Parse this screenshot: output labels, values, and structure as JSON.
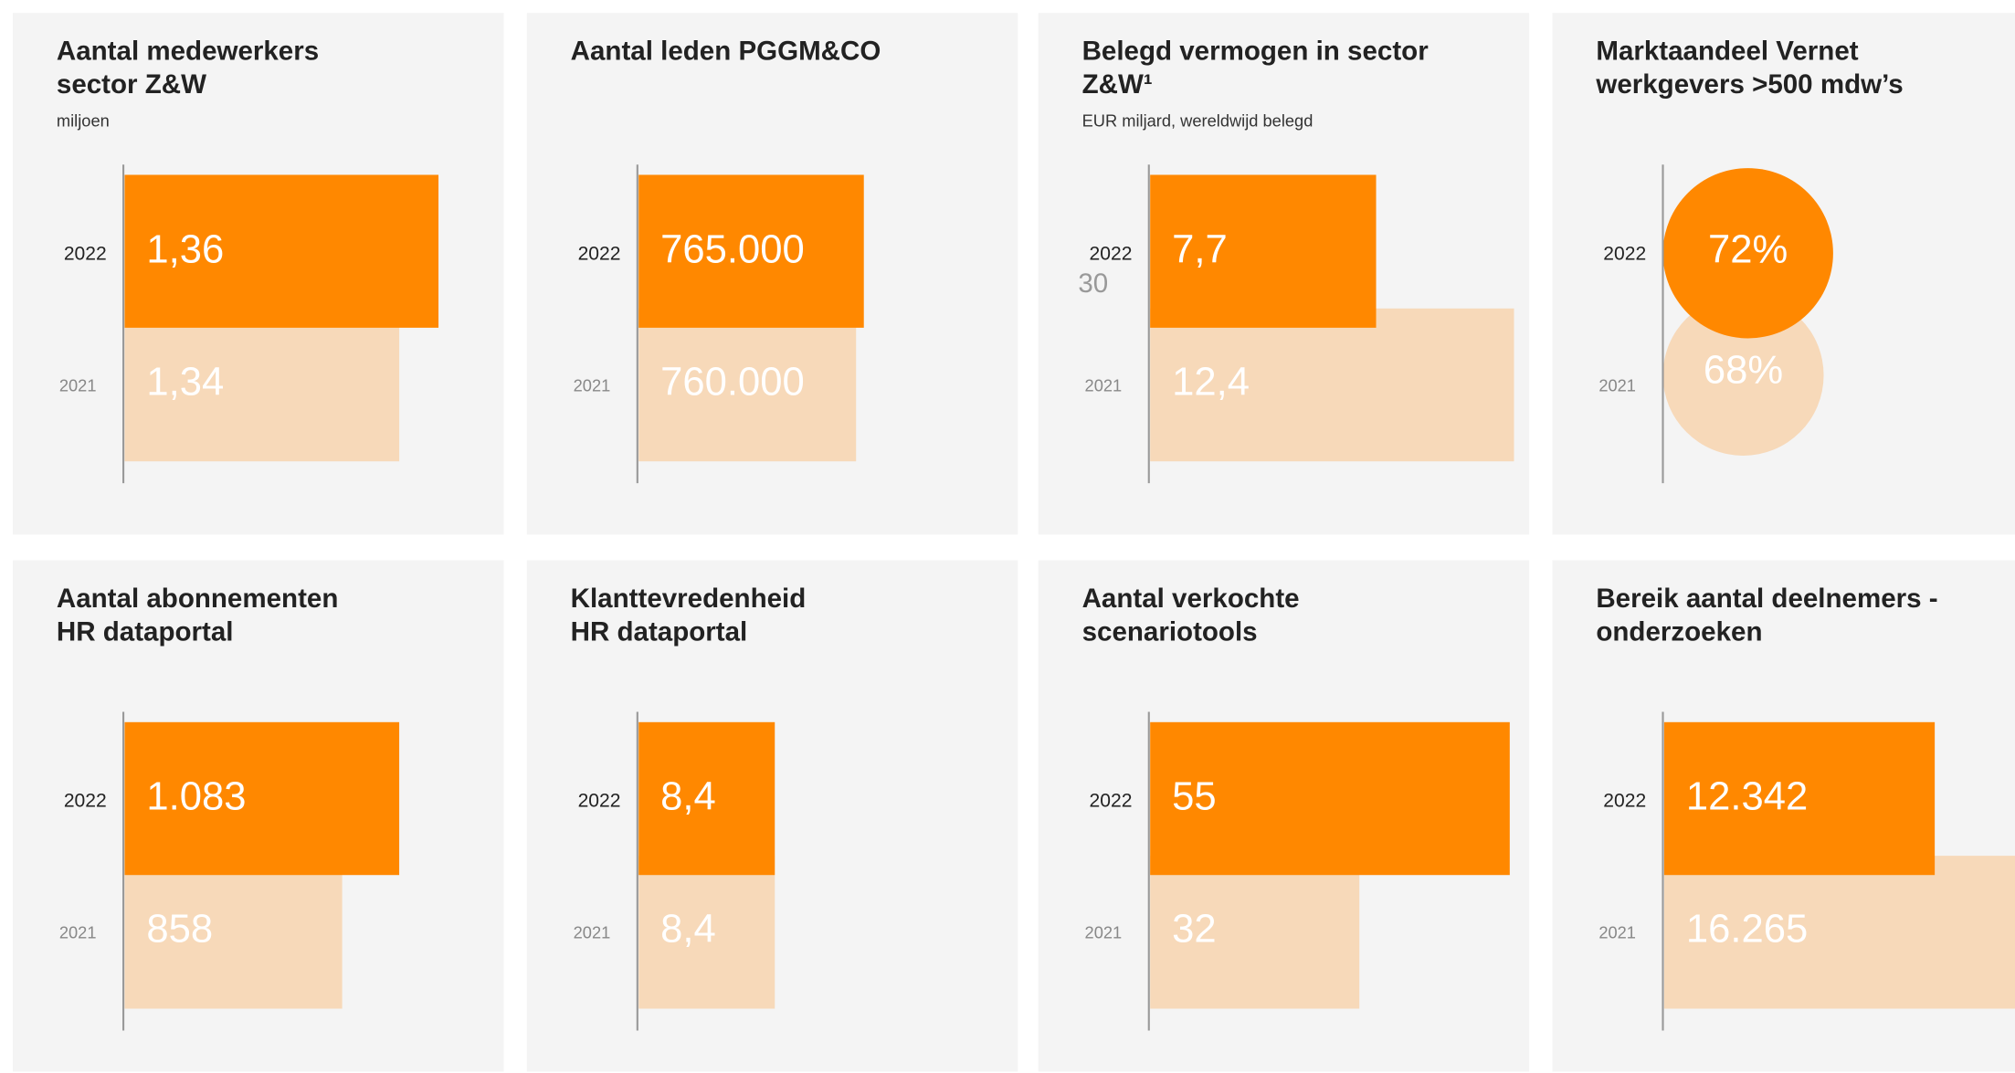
{
  "chart_data": [
    {
      "type": "bar",
      "title": [
        "Aantal medewerkers",
        "sector Z&W"
      ],
      "subtitle": "miljoen",
      "categories": [
        "2022",
        "2021"
      ],
      "values": [
        1.36,
        1.34
      ],
      "value_labels": [
        "1,36",
        "1,34"
      ],
      "colors": [
        "#ff8800",
        "#f7d9b9"
      ],
      "xlim": [
        1.2,
        1.39
      ]
    },
    {
      "type": "bar",
      "title": [
        "Aantal leden PGGM&CO"
      ],
      "categories": [
        "2022",
        "2021"
      ],
      "values": [
        765000,
        760000
      ],
      "value_labels": [
        "765.000",
        "760.000"
      ],
      "colors": [
        "#ff8800",
        "#f7d9b9"
      ],
      "xlim": [
        620000,
        860000
      ]
    },
    {
      "type": "bar",
      "title": [
        "Belegd vermogen in sector",
        "Z&W¹"
      ],
      "subtitle": "EUR miljard, wereldwijd belegd",
      "annotation": "30",
      "categories": [
        "2022",
        "2021"
      ],
      "values": [
        7.7,
        12.4
      ],
      "value_labels": [
        "7,7",
        "12,4"
      ],
      "colors": [
        "#ff8800",
        "#f7d9b9"
      ],
      "xlim": [
        0,
        12.7
      ]
    },
    {
      "type": "circle",
      "title": [
        "Marktaandeel Vernet",
        "werkgevers >500 mdw’s"
      ],
      "categories": [
        "2022",
        "2021"
      ],
      "values": [
        72,
        68
      ],
      "value_labels": [
        "72%",
        "68%"
      ],
      "colors": [
        "#ff8800",
        "#f7d9b9"
      ]
    },
    {
      "type": "bar",
      "title": [
        "Aantal abonnementen",
        "HR dataportal"
      ],
      "categories": [
        "2022",
        "2021"
      ],
      "values": [
        1083,
        858
      ],
      "value_labels": [
        "1.083",
        "858"
      ],
      "colors": [
        "#ff8800",
        "#f7d9b9"
      ],
      "xlim": [
        0,
        1470
      ]
    },
    {
      "type": "bar",
      "title": [
        "Klanttevredenheid",
        "HR dataportal"
      ],
      "categories": [
        "2022",
        "2021"
      ],
      "values": [
        8.4,
        8.4
      ],
      "value_labels": [
        "8,4",
        "8,4"
      ],
      "colors": [
        "#ff8800",
        "#f7d9b9"
      ],
      "xlim": [
        0,
        23
      ]
    },
    {
      "type": "bar",
      "title": [
        "Aantal verkochte",
        "scenariotools"
      ],
      "categories": [
        "2022",
        "2021"
      ],
      "values": [
        55,
        32
      ],
      "value_labels": [
        "55",
        "32"
      ],
      "colors": [
        "#ff8800",
        "#f7d9b9"
      ],
      "xlim": [
        0,
        57
      ]
    },
    {
      "type": "bar",
      "title": [
        "Bereik aantal deelnemers -",
        "onderzoeken"
      ],
      "categories": [
        "2022",
        "2021"
      ],
      "values": [
        12342,
        16265
      ],
      "value_labels": [
        "12.342",
        "16.265"
      ],
      "colors": [
        "#ff8800",
        "#f7d9b9"
      ],
      "xlim": [
        0,
        17000
      ]
    }
  ]
}
